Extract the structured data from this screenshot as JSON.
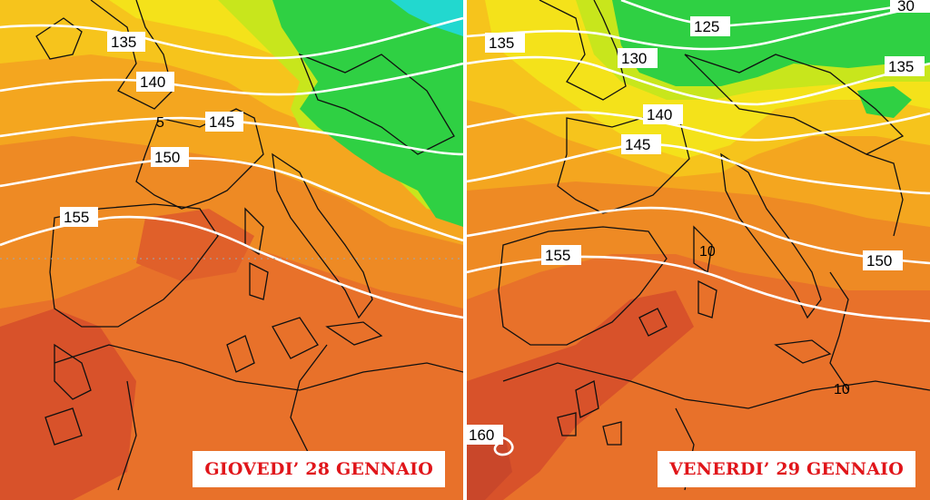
{
  "maps": [
    {
      "date_label": "GIOVEDI’ 28 GENNAIO",
      "isolines": [
        "135",
        "140",
        "145",
        "150",
        "155"
      ],
      "minor_labels": [
        "5"
      ]
    },
    {
      "date_label": "VENERDI’ 29 GENNAIO",
      "isolines": [
        "30",
        "125",
        "130",
        "135",
        "135",
        "140",
        "145",
        "150",
        "155",
        "160"
      ],
      "minor_labels": [
        "10",
        "10"
      ]
    }
  ],
  "colors": {
    "deep_orange": "#d8522a",
    "orange": "#ee8a24",
    "light_orange": "#f4a61f",
    "yellow": "#f4e21a",
    "yellow_green": "#c8e61c",
    "green": "#2fd043",
    "cyan": "#22d8cf",
    "isoline": "#ffffff",
    "date_text": "#e0151a"
  }
}
